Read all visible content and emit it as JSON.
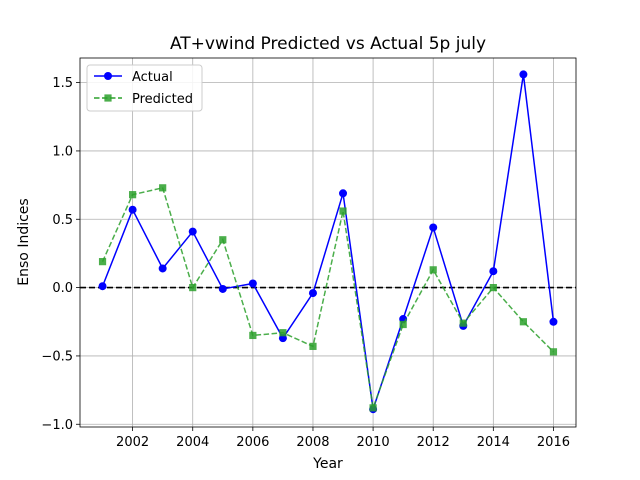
{
  "chart_data": {
    "type": "line",
    "title": "AT+vwind Predicted vs Actual 5p july",
    "xlabel": "Year",
    "ylabel": "Enso Indices",
    "xlim": [
      2000.25,
      2016.75
    ],
    "ylim": [
      -1.02,
      1.68
    ],
    "xticks": [
      2002,
      2004,
      2006,
      2008,
      2010,
      2012,
      2014,
      2016
    ],
    "yticks": [
      -1.0,
      -0.5,
      0.0,
      0.5,
      1.0,
      1.5
    ],
    "ytick_labels": [
      "−1.0",
      "−0.5",
      "0.0",
      "0.5",
      "1.0",
      "1.5"
    ],
    "grid": true,
    "legend_position": "top-left",
    "reference_line": {
      "y": 0.0,
      "style": "dashed",
      "color": "#000000"
    },
    "x": [
      2001,
      2002,
      2003,
      2004,
      2005,
      2006,
      2007,
      2008,
      2009,
      2010,
      2011,
      2012,
      2013,
      2014,
      2015,
      2016
    ],
    "series": [
      {
        "name": "Actual",
        "color": "#0000ff",
        "marker": "circle",
        "linestyle": "solid",
        "values": [
          0.01,
          0.57,
          0.14,
          0.41,
          -0.01,
          0.03,
          -0.37,
          -0.04,
          0.69,
          -0.89,
          -0.23,
          0.44,
          -0.28,
          0.12,
          1.56,
          -0.25
        ]
      },
      {
        "name": "Predicted",
        "color": "#2ca02c",
        "marker": "square",
        "linestyle": "dashed",
        "values": [
          0.19,
          0.68,
          0.73,
          0.0,
          0.35,
          -0.35,
          -0.33,
          -0.43,
          0.56,
          -0.88,
          -0.27,
          0.13,
          -0.26,
          0.0,
          -0.25,
          -0.47
        ]
      }
    ]
  }
}
